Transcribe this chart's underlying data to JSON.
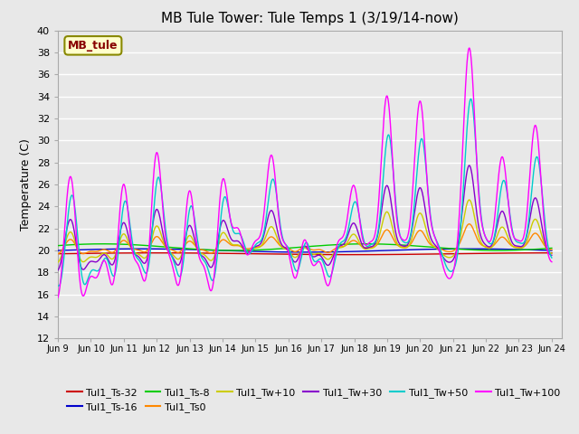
{
  "title": "MB Tule Tower: Tule Temps 1 (3/19/14-now)",
  "ylabel": "Temperature (C)",
  "ylim": [
    12,
    40
  ],
  "yticks": [
    12,
    14,
    16,
    18,
    20,
    22,
    24,
    26,
    28,
    30,
    32,
    34,
    36,
    38,
    40
  ],
  "plot_bg_color": "#e8e8e8",
  "grid_color": "#ffffff",
  "series_colors": {
    "Tul1_Ts-32": "#cc0000",
    "Tul1_Ts-16": "#0000cc",
    "Tul1_Ts-8": "#00cc00",
    "Tul1_Ts0": "#ff8800",
    "Tul1_Tw+10": "#cccc00",
    "Tul1_Tw+30": "#8800cc",
    "Tul1_Tw+50": "#00cccc",
    "Tul1_Tw+100": "#ff00ff"
  },
  "legend_label": "MB_tule",
  "legend_bg": "#ffffcc",
  "legend_border": "#888800",
  "x_tick_labels": [
    "Jun 9",
    "Jun 10",
    "Jun 11",
    "Jun 12",
    "Jun 13",
    "Jun 14",
    "Jun 15",
    "Jun 16",
    "Jun 17",
    "Jun 18",
    "Jun 19",
    "Jun 20",
    "Jun 21",
    "Jun 22",
    "Jun 23",
    "Jun 24"
  ]
}
